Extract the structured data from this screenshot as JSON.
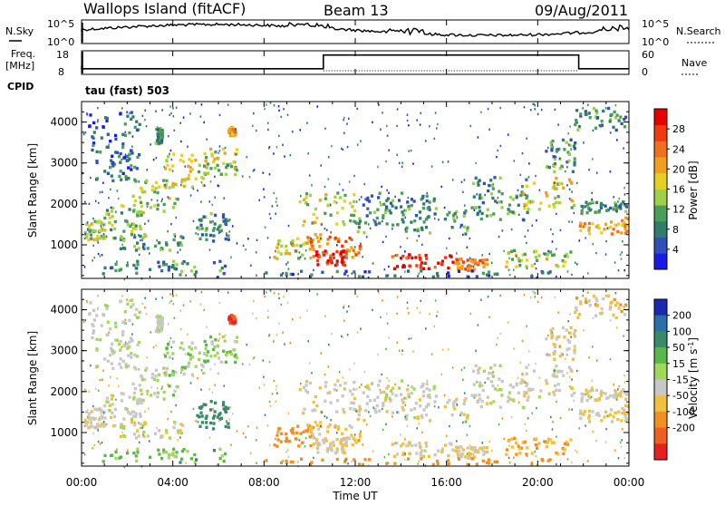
{
  "header": {
    "station": "Wallops Island (fitACF)",
    "beam": "Beam 13",
    "date": "09/Aug/2011"
  },
  "panels": {
    "nsky_label": "N.Sky",
    "nsky_ticks": [
      "10^5",
      "10^0"
    ],
    "nsearch_label": "N.Search",
    "nsearch_ticks": [
      "10^5",
      "10^0"
    ],
    "freq_label": "Freq.",
    "freq_unit": "[MHz]",
    "freq_ticks": [
      "18",
      "8"
    ],
    "nave_label": "Nave",
    "nave_ticks": [
      "60",
      "0"
    ],
    "cpid_label": "CPID",
    "cpid_value": "tau (fast) 503"
  },
  "chart_data": [
    {
      "type": "heatmap",
      "title": "",
      "quantity": "Power",
      "ylabel": "Slant Range [km]",
      "xlabel": "Time UT",
      "ylim": [
        180,
        4500
      ],
      "yticks": [
        1000,
        2000,
        3000,
        4000
      ],
      "colorbar_label": "Power [dB]",
      "colorbar_ticks": [
        4,
        8,
        12,
        16,
        20,
        24,
        28
      ],
      "colorbar_colors": [
        "#1a1ae6",
        "#3050b8",
        "#2f7d6a",
        "#4a9e5a",
        "#9fd04a",
        "#e8d020",
        "#f0a020",
        "#f07020",
        "#f03a10",
        "#e60000"
      ]
    },
    {
      "type": "heatmap",
      "title": "",
      "quantity": "Velocity",
      "ylabel": "Slant Range [km]",
      "xlabel": "Time UT",
      "ylim": [
        180,
        4500
      ],
      "yticks": [
        1000,
        2000,
        3000,
        4000
      ],
      "colorbar_label": "Velocity [m s^-1]",
      "colorbar_ticks": [
        200,
        100,
        50,
        15,
        -15,
        -50,
        -100,
        -200
      ],
      "colorbar_colors": [
        "#1a2ab0",
        "#2a70a8",
        "#3a8a6a",
        "#5ab84a",
        "#a0d858",
        "#c8c8c8",
        "#f0c040",
        "#f09020",
        "#f06020",
        "#e62020"
      ]
    }
  ],
  "x_axis": {
    "label": "Time UT",
    "range_hours": [
      0,
      24
    ],
    "tick_labels": [
      "00:00",
      "04:00",
      "08:00",
      "12:00",
      "16:00",
      "20:00",
      "00:00"
    ]
  },
  "freq_series": {
    "x_hours": [
      0,
      10.6,
      10.6,
      21.8,
      21.8,
      24
    ],
    "y_mhz": [
      10.4,
      10.4,
      16.2,
      16.2,
      10.4,
      10.4
    ]
  },
  "echo_regions": [
    {
      "t0": 0.1,
      "t1": 1.0,
      "r0": 1150,
      "r1": 1650,
      "p": 14,
      "v": -10
    },
    {
      "t0": 0.8,
      "t1": 2.6,
      "r0": 1350,
      "r1": 2000,
      "p": 12,
      "v": -5
    },
    {
      "t0": 2.2,
      "t1": 4.2,
      "r0": 1800,
      "r1": 2700,
      "p": 14,
      "v": 5
    },
    {
      "t0": 3.6,
      "t1": 5.4,
      "r0": 2400,
      "r1": 3300,
      "p": 16,
      "v": 8
    },
    {
      "t0": 5.2,
      "t1": 6.8,
      "r0": 2700,
      "r1": 3400,
      "p": 14,
      "v": 12
    },
    {
      "t0": 0.2,
      "t1": 2.5,
      "r0": 2600,
      "r1": 4300,
      "p": 6,
      "v": 0
    },
    {
      "t0": 1.2,
      "t1": 4.6,
      "r0": 900,
      "r1": 1300,
      "p": 10,
      "v": -5
    },
    {
      "t0": 0.8,
      "t1": 6.4,
      "r0": 300,
      "r1": 650,
      "p": 8,
      "v": 20
    },
    {
      "t0": 5.0,
      "t1": 6.4,
      "r0": 1100,
      "r1": 1800,
      "p": 9,
      "v": 60
    },
    {
      "t0": 8.4,
      "t1": 10.4,
      "r0": 700,
      "r1": 1200,
      "p": 16,
      "v": -60
    },
    {
      "t0": 9.5,
      "t1": 12.0,
      "r0": 1500,
      "r1": 2300,
      "p": 14,
      "v": -10
    },
    {
      "t0": 9.8,
      "t1": 12.2,
      "r0": 700,
      "r1": 1300,
      "p": 20,
      "v": -20
    },
    {
      "t0": 10.2,
      "t1": 11.6,
      "r0": 500,
      "r1": 900,
      "p": 26,
      "v": -15
    },
    {
      "t0": 12.0,
      "t1": 17.0,
      "r0": 1300,
      "r1": 1900,
      "p": 10,
      "v": -8
    },
    {
      "t0": 13.5,
      "t1": 16.3,
      "r0": 450,
      "r1": 800,
      "p": 28,
      "v": -10
    },
    {
      "t0": 16.3,
      "t1": 17.8,
      "r0": 400,
      "r1": 700,
      "p": 22,
      "v": -12
    },
    {
      "t0": 8.0,
      "t1": 21.0,
      "r0": 250,
      "r1": 400,
      "p": 6,
      "v": -60
    },
    {
      "t0": 12.3,
      "t1": 15.5,
      "r0": 1900,
      "r1": 2300,
      "p": 8,
      "v": -5
    },
    {
      "t0": 17.0,
      "t1": 19.5,
      "r0": 1600,
      "r1": 2700,
      "p": 10,
      "v": -5
    },
    {
      "t0": 19.3,
      "t1": 21.6,
      "r0": 1900,
      "r1": 2700,
      "p": 16,
      "v": -8
    },
    {
      "t0": 20.3,
      "t1": 21.8,
      "r0": 2800,
      "r1": 3600,
      "p": 9,
      "v": -10
    },
    {
      "t0": 21.8,
      "t1": 23.9,
      "r0": 1300,
      "r1": 1700,
      "p": 20,
      "v": -18
    },
    {
      "t0": 21.8,
      "t1": 23.9,
      "r0": 1800,
      "r1": 2100,
      "p": 10,
      "v": -10
    },
    {
      "t0": 21.5,
      "t1": 23.9,
      "r0": 3800,
      "r1": 4400,
      "p": 8,
      "v": -20
    },
    {
      "t0": 18.5,
      "t1": 21.5,
      "r0": 500,
      "r1": 900,
      "p": 14,
      "v": -30
    },
    {
      "t0": 3.2,
      "t1": 3.5,
      "r0": 3500,
      "r1": 3900,
      "p": 8,
      "v": 0
    },
    {
      "t0": 6.4,
      "t1": 6.7,
      "r0": 3700,
      "r1": 3900,
      "p": 20,
      "v": -150
    }
  ]
}
